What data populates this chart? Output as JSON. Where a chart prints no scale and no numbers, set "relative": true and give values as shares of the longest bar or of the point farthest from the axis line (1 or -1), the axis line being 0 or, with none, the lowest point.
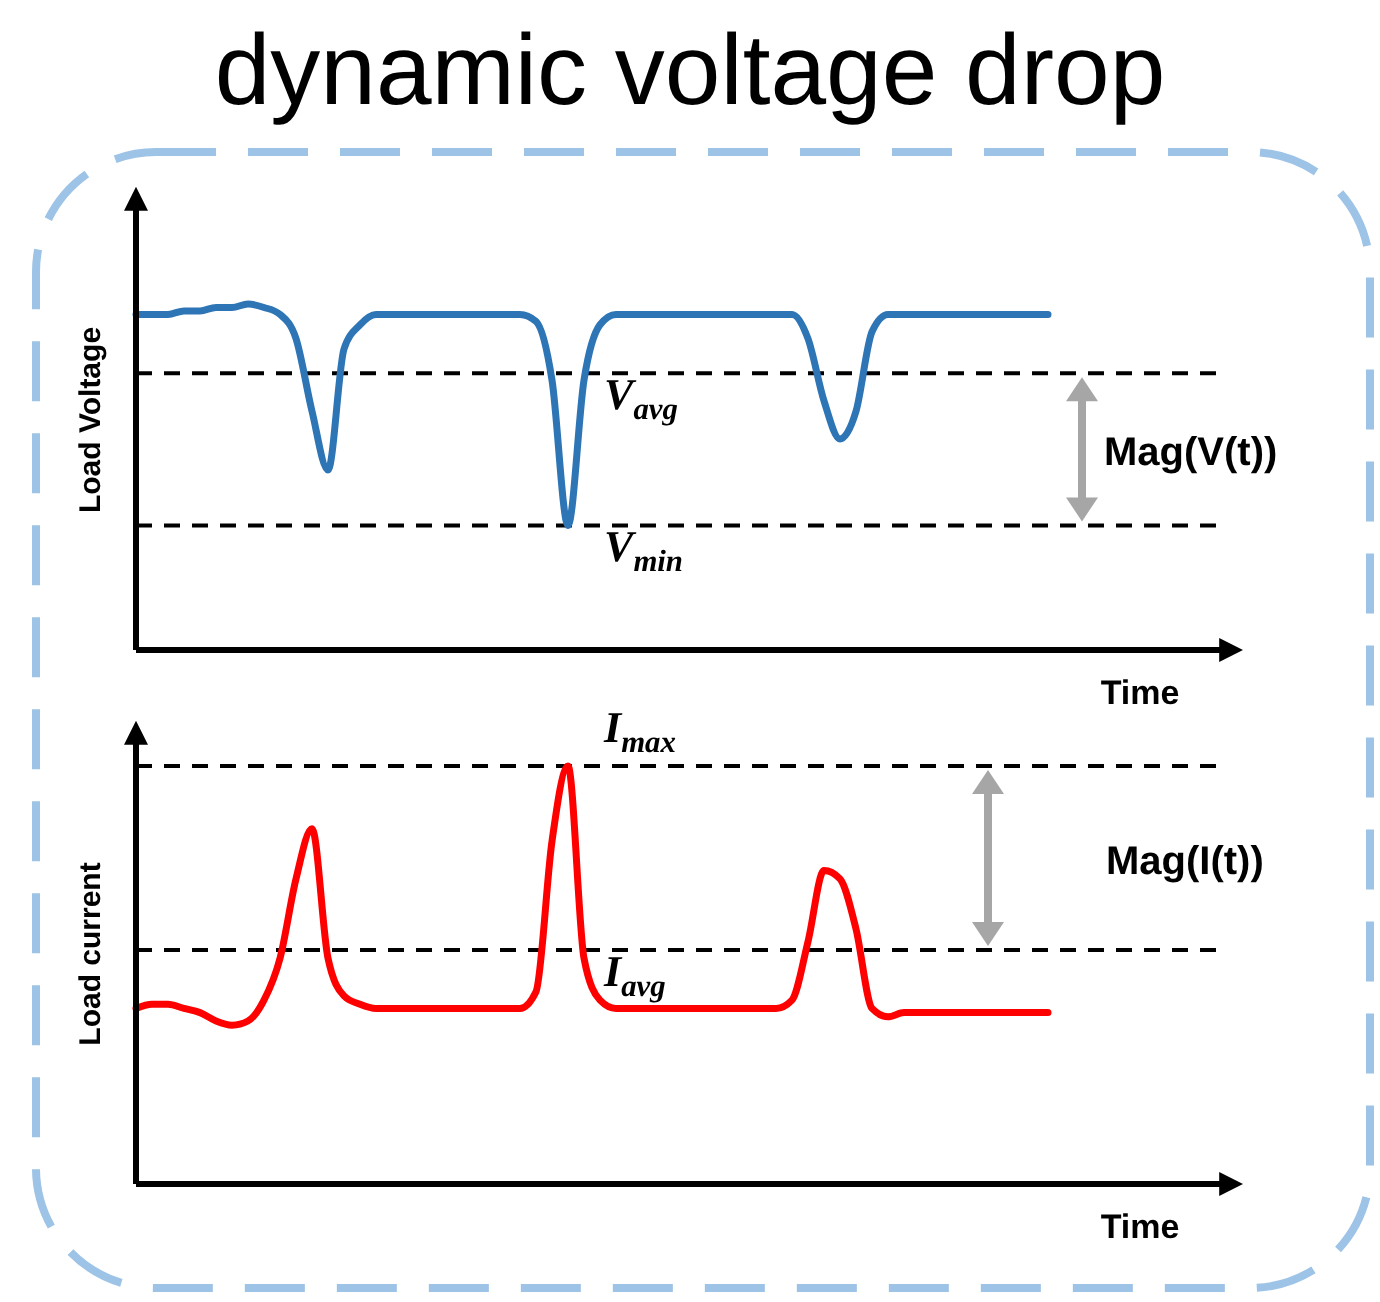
{
  "chart_data": [
    {
      "type": "line",
      "title": "dynamic voltage drop",
      "ylabel": "Load Voltage",
      "xlabel": "Time",
      "relative": true,
      "categories": [
        null,
        null,
        null,
        null,
        null,
        null,
        null,
        null,
        null,
        null,
        null,
        null,
        null,
        null,
        null,
        null,
        null,
        null,
        null,
        null,
        null,
        null,
        null,
        null,
        null,
        null,
        null,
        null,
        null,
        null,
        null,
        null,
        null,
        null,
        null,
        null,
        null,
        null,
        null,
        null,
        null,
        null,
        null,
        null,
        null,
        null,
        null,
        null,
        null,
        null,
        null,
        null,
        null,
        null,
        null,
        null,
        null,
        null,
        null,
        null,
        null,
        null,
        null,
        null,
        null,
        null,
        null,
        null,
        null
      ],
      "series": [
        {
          "color": "#2e75b6",
          "values": [
            0.97,
            0.97,
            0.97,
            0.98,
            0.98,
            0.99,
            0.99,
            1.0,
            0.99,
            0.97,
            0.9,
            0.69,
            0.52,
            0.87,
            0.94,
            0.97,
            0.97,
            0.97,
            0.97,
            0.97,
            0.97,
            0.97,
            0.97,
            0.97,
            0.97,
            0.95,
            0.78,
            0.36,
            0.78,
            0.94,
            0.97,
            0.97,
            0.97,
            0.97,
            0.97,
            0.97,
            0.97,
            0.97,
            0.97,
            0.97,
            0.97,
            0.97,
            0.9,
            0.72,
            0.61,
            0.69,
            0.92,
            0.97,
            0.97,
            0.97,
            0.97,
            0.97,
            0.97,
            0.97,
            0.97,
            0.97,
            0.97,
            0.97,
            null,
            null,
            null,
            null,
            null,
            null,
            null,
            null,
            null,
            null,
            null
          ]
        }
      ],
      "ref_lines": [
        {
          "axis": "y",
          "value": 0.8,
          "label": "V$_{avg}$",
          "color": "#000000",
          "line_style": "dashed"
        },
        {
          "axis": "y",
          "value": 0.36,
          "label": "V$_{min}$",
          "color": "#000000",
          "line_style": "dashed"
        }
      ],
      "annotations": [
        "Mag(V(t))"
      ]
    },
    {
      "type": "line",
      "ylabel": "Load current",
      "xlabel": "Time",
      "relative": true,
      "categories": [
        null,
        null,
        null,
        null,
        null,
        null,
        null,
        null,
        null,
        null,
        null,
        null,
        null,
        null,
        null,
        null,
        null,
        null,
        null,
        null,
        null,
        null,
        null,
        null,
        null,
        null,
        null,
        null,
        null,
        null,
        null,
        null,
        null,
        null,
        null,
        null,
        null,
        null,
        null,
        null,
        null,
        null,
        null,
        null,
        null,
        null,
        null,
        null,
        null,
        null,
        null,
        null,
        null,
        null,
        null,
        null,
        null,
        null,
        null,
        null,
        null,
        null,
        null,
        null,
        null,
        null,
        null,
        null,
        null
      ],
      "series": [
        {
          "color": "#ff0000",
          "values": [
            0.42,
            0.43,
            0.43,
            0.42,
            0.41,
            0.39,
            0.38,
            0.39,
            0.44,
            0.54,
            0.73,
            0.85,
            0.54,
            0.45,
            0.43,
            0.42,
            0.42,
            0.42,
            0.42,
            0.42,
            0.42,
            0.42,
            0.42,
            0.42,
            0.42,
            0.46,
            0.82,
            1.0,
            0.54,
            0.44,
            0.42,
            0.42,
            0.42,
            0.42,
            0.42,
            0.42,
            0.42,
            0.42,
            0.42,
            0.42,
            0.42,
            0.44,
            0.58,
            0.75,
            0.73,
            0.61,
            0.42,
            0.4,
            0.41,
            0.41,
            0.41,
            0.41,
            0.41,
            0.41,
            0.41,
            0.41,
            0.41,
            0.41,
            null,
            null,
            null,
            null,
            null,
            null,
            null,
            null,
            null,
            null,
            null
          ]
        }
      ],
      "ref_lines": [
        {
          "axis": "y",
          "value": 1.0,
          "label": "I$_{max}$",
          "color": "#000000",
          "line_style": "dashed"
        },
        {
          "axis": "y",
          "value": 0.56,
          "label": "I$_{avg}$",
          "color": "#000000",
          "line_style": "dashed"
        }
      ],
      "annotations": [
        "Mag(I(t))"
      ]
    }
  ]
}
